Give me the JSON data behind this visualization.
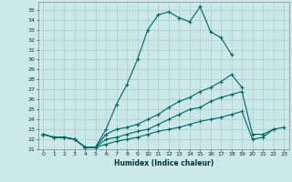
{
  "xlabel": "Humidex (Indice chaleur)",
  "background_color": "#cce8e8",
  "grid_color": "#aacccc",
  "line_color": "#006666",
  "xlim": [
    -0.5,
    23.5
  ],
  "ylim": [
    21.0,
    35.8
  ],
  "xticks": [
    0,
    1,
    2,
    3,
    4,
    5,
    6,
    7,
    8,
    9,
    10,
    11,
    12,
    13,
    14,
    15,
    16,
    17,
    18,
    19,
    20,
    21,
    22,
    23
  ],
  "yticks": [
    21,
    22,
    23,
    24,
    25,
    26,
    27,
    28,
    29,
    30,
    31,
    32,
    33,
    34,
    35
  ],
  "series": [
    {
      "x": [
        0,
        1,
        2,
        3,
        4,
        5,
        6,
        7,
        8,
        9,
        10,
        11,
        12,
        13,
        14,
        15,
        16,
        17,
        18
      ],
      "y": [
        22.5,
        22.2,
        22.2,
        22.0,
        21.2,
        21.2,
        23.0,
        25.5,
        27.5,
        30.0,
        33.0,
        34.5,
        34.8,
        34.2,
        33.8,
        35.3,
        32.8,
        32.2,
        30.5
      ]
    },
    {
      "x": [
        0,
        1,
        2,
        3,
        4,
        5,
        6,
        7,
        8,
        9,
        10,
        11,
        12,
        13,
        14,
        15,
        16,
        17,
        18,
        19,
        20,
        21,
        22,
        23
      ],
      "y": [
        22.5,
        22.2,
        22.2,
        22.0,
        21.2,
        21.2,
        22.5,
        23.0,
        23.2,
        23.5,
        24.0,
        24.5,
        25.2,
        25.8,
        26.2,
        26.8,
        27.2,
        27.8,
        28.5,
        27.2,
        null,
        null,
        null,
        null
      ]
    },
    {
      "x": [
        0,
        1,
        2,
        3,
        4,
        5,
        6,
        7,
        8,
        9,
        10,
        11,
        12,
        13,
        14,
        15,
        16,
        17,
        18,
        19,
        20,
        21,
        22,
        23
      ],
      "y": [
        22.5,
        22.2,
        22.2,
        22.0,
        21.2,
        21.2,
        22.0,
        22.2,
        22.5,
        22.8,
        23.0,
        23.5,
        24.0,
        24.5,
        25.0,
        25.2,
        25.8,
        26.2,
        26.5,
        26.8,
        22.5,
        22.5,
        23.0,
        null
      ]
    },
    {
      "x": [
        0,
        1,
        2,
        3,
        4,
        5,
        6,
        7,
        8,
        9,
        10,
        11,
        12,
        13,
        14,
        15,
        16,
        17,
        18,
        19,
        20,
        21,
        22,
        23
      ],
      "y": [
        22.5,
        22.2,
        22.2,
        22.0,
        21.2,
        21.2,
        21.5,
        21.8,
        22.0,
        22.2,
        22.5,
        22.8,
        23.0,
        23.2,
        23.5,
        23.8,
        24.0,
        24.2,
        24.5,
        24.8,
        22.0,
        22.2,
        23.0,
        23.2
      ]
    }
  ]
}
